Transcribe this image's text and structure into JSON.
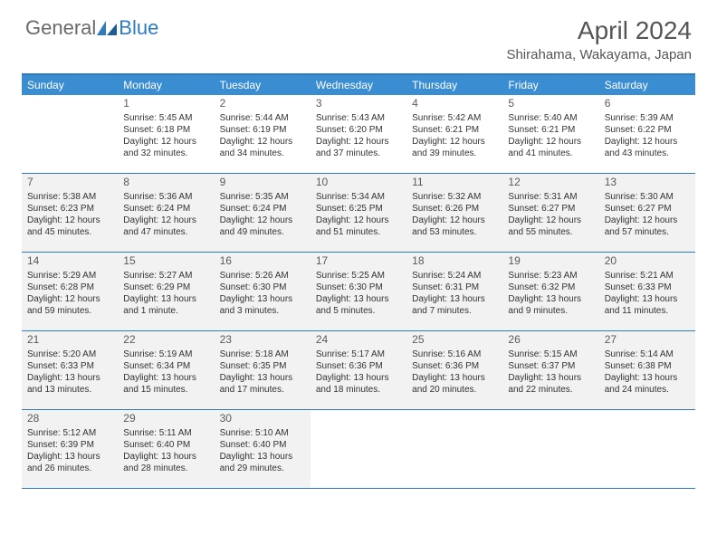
{
  "brand": {
    "part1": "General",
    "part2": "Blue"
  },
  "title": "April 2024",
  "location": "Shirahama, Wakayama, Japan",
  "colors": {
    "header_bg": "#3a8dd0",
    "border": "#2f7bbf",
    "shaded": "#f2f2f2",
    "text": "#333333",
    "title_text": "#555555"
  },
  "day_names": [
    "Sunday",
    "Monday",
    "Tuesday",
    "Wednesday",
    "Thursday",
    "Friday",
    "Saturday"
  ],
  "weeks": [
    [
      {
        "blank": true,
        "shaded": false
      },
      {
        "n": "1",
        "sr": "Sunrise: 5:45 AM",
        "ss": "Sunset: 6:18 PM",
        "d1": "Daylight: 12 hours",
        "d2": "and 32 minutes."
      },
      {
        "n": "2",
        "sr": "Sunrise: 5:44 AM",
        "ss": "Sunset: 6:19 PM",
        "d1": "Daylight: 12 hours",
        "d2": "and 34 minutes."
      },
      {
        "n": "3",
        "sr": "Sunrise: 5:43 AM",
        "ss": "Sunset: 6:20 PM",
        "d1": "Daylight: 12 hours",
        "d2": "and 37 minutes."
      },
      {
        "n": "4",
        "sr": "Sunrise: 5:42 AM",
        "ss": "Sunset: 6:21 PM",
        "d1": "Daylight: 12 hours",
        "d2": "and 39 minutes."
      },
      {
        "n": "5",
        "sr": "Sunrise: 5:40 AM",
        "ss": "Sunset: 6:21 PM",
        "d1": "Daylight: 12 hours",
        "d2": "and 41 minutes."
      },
      {
        "n": "6",
        "sr": "Sunrise: 5:39 AM",
        "ss": "Sunset: 6:22 PM",
        "d1": "Daylight: 12 hours",
        "d2": "and 43 minutes."
      }
    ],
    [
      {
        "n": "7",
        "sr": "Sunrise: 5:38 AM",
        "ss": "Sunset: 6:23 PM",
        "d1": "Daylight: 12 hours",
        "d2": "and 45 minutes.",
        "shaded": true
      },
      {
        "n": "8",
        "sr": "Sunrise: 5:36 AM",
        "ss": "Sunset: 6:24 PM",
        "d1": "Daylight: 12 hours",
        "d2": "and 47 minutes.",
        "shaded": true
      },
      {
        "n": "9",
        "sr": "Sunrise: 5:35 AM",
        "ss": "Sunset: 6:24 PM",
        "d1": "Daylight: 12 hours",
        "d2": "and 49 minutes.",
        "shaded": true
      },
      {
        "n": "10",
        "sr": "Sunrise: 5:34 AM",
        "ss": "Sunset: 6:25 PM",
        "d1": "Daylight: 12 hours",
        "d2": "and 51 minutes.",
        "shaded": true
      },
      {
        "n": "11",
        "sr": "Sunrise: 5:32 AM",
        "ss": "Sunset: 6:26 PM",
        "d1": "Daylight: 12 hours",
        "d2": "and 53 minutes.",
        "shaded": true
      },
      {
        "n": "12",
        "sr": "Sunrise: 5:31 AM",
        "ss": "Sunset: 6:27 PM",
        "d1": "Daylight: 12 hours",
        "d2": "and 55 minutes.",
        "shaded": true
      },
      {
        "n": "13",
        "sr": "Sunrise: 5:30 AM",
        "ss": "Sunset: 6:27 PM",
        "d1": "Daylight: 12 hours",
        "d2": "and 57 minutes.",
        "shaded": true
      }
    ],
    [
      {
        "n": "14",
        "sr": "Sunrise: 5:29 AM",
        "ss": "Sunset: 6:28 PM",
        "d1": "Daylight: 12 hours",
        "d2": "and 59 minutes.",
        "shaded": true
      },
      {
        "n": "15",
        "sr": "Sunrise: 5:27 AM",
        "ss": "Sunset: 6:29 PM",
        "d1": "Daylight: 13 hours",
        "d2": "and 1 minute.",
        "shaded": true
      },
      {
        "n": "16",
        "sr": "Sunrise: 5:26 AM",
        "ss": "Sunset: 6:30 PM",
        "d1": "Daylight: 13 hours",
        "d2": "and 3 minutes.",
        "shaded": true
      },
      {
        "n": "17",
        "sr": "Sunrise: 5:25 AM",
        "ss": "Sunset: 6:30 PM",
        "d1": "Daylight: 13 hours",
        "d2": "and 5 minutes.",
        "shaded": true
      },
      {
        "n": "18",
        "sr": "Sunrise: 5:24 AM",
        "ss": "Sunset: 6:31 PM",
        "d1": "Daylight: 13 hours",
        "d2": "and 7 minutes.",
        "shaded": true
      },
      {
        "n": "19",
        "sr": "Sunrise: 5:23 AM",
        "ss": "Sunset: 6:32 PM",
        "d1": "Daylight: 13 hours",
        "d2": "and 9 minutes.",
        "shaded": true
      },
      {
        "n": "20",
        "sr": "Sunrise: 5:21 AM",
        "ss": "Sunset: 6:33 PM",
        "d1": "Daylight: 13 hours",
        "d2": "and 11 minutes.",
        "shaded": true
      }
    ],
    [
      {
        "n": "21",
        "sr": "Sunrise: 5:20 AM",
        "ss": "Sunset: 6:33 PM",
        "d1": "Daylight: 13 hours",
        "d2": "and 13 minutes.",
        "shaded": true
      },
      {
        "n": "22",
        "sr": "Sunrise: 5:19 AM",
        "ss": "Sunset: 6:34 PM",
        "d1": "Daylight: 13 hours",
        "d2": "and 15 minutes.",
        "shaded": true
      },
      {
        "n": "23",
        "sr": "Sunrise: 5:18 AM",
        "ss": "Sunset: 6:35 PM",
        "d1": "Daylight: 13 hours",
        "d2": "and 17 minutes.",
        "shaded": true
      },
      {
        "n": "24",
        "sr": "Sunrise: 5:17 AM",
        "ss": "Sunset: 6:36 PM",
        "d1": "Daylight: 13 hours",
        "d2": "and 18 minutes.",
        "shaded": true
      },
      {
        "n": "25",
        "sr": "Sunrise: 5:16 AM",
        "ss": "Sunset: 6:36 PM",
        "d1": "Daylight: 13 hours",
        "d2": "and 20 minutes.",
        "shaded": true
      },
      {
        "n": "26",
        "sr": "Sunrise: 5:15 AM",
        "ss": "Sunset: 6:37 PM",
        "d1": "Daylight: 13 hours",
        "d2": "and 22 minutes.",
        "shaded": true
      },
      {
        "n": "27",
        "sr": "Sunrise: 5:14 AM",
        "ss": "Sunset: 6:38 PM",
        "d1": "Daylight: 13 hours",
        "d2": "and 24 minutes.",
        "shaded": true
      }
    ],
    [
      {
        "n": "28",
        "sr": "Sunrise: 5:12 AM",
        "ss": "Sunset: 6:39 PM",
        "d1": "Daylight: 13 hours",
        "d2": "and 26 minutes.",
        "shaded": true
      },
      {
        "n": "29",
        "sr": "Sunrise: 5:11 AM",
        "ss": "Sunset: 6:40 PM",
        "d1": "Daylight: 13 hours",
        "d2": "and 28 minutes.",
        "shaded": true
      },
      {
        "n": "30",
        "sr": "Sunrise: 5:10 AM",
        "ss": "Sunset: 6:40 PM",
        "d1": "Daylight: 13 hours",
        "d2": "and 29 minutes.",
        "shaded": true
      },
      {
        "blank": true,
        "shaded": false
      },
      {
        "blank": true,
        "shaded": false
      },
      {
        "blank": true,
        "shaded": false
      },
      {
        "blank": true,
        "shaded": false
      }
    ]
  ]
}
